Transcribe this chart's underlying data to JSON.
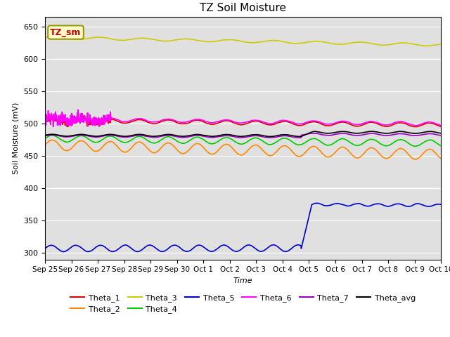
{
  "title": "TZ Soil Moisture",
  "ylabel": "Soil Moisture (mV)",
  "xlabel": "Time",
  "ylim": [
    290,
    665
  ],
  "yticks": [
    300,
    350,
    400,
    450,
    500,
    550,
    600,
    650
  ],
  "background_color": "#e0e0e0",
  "legend_label": "TZ_sm",
  "grid_color": "#ffffff",
  "tick_labels": [
    "Sep 25",
    "Sep 26",
    "Sep 27",
    "Sep 28",
    "Sep 29",
    "Sep 30",
    "Oct 1",
    "Oct 2",
    "Oct 3",
    "Oct 4",
    "Oct 5",
    "Oct 6",
    "Oct 7",
    "Oct 8",
    "Oct 9",
    "Oct 10"
  ],
  "legend_row1": [
    "Theta_1",
    "Theta_2",
    "Theta_3",
    "Theta_4",
    "Theta_5",
    "Theta_6"
  ],
  "legend_row2": [
    "Theta_7",
    "Theta_avg"
  ],
  "series_colors": {
    "Theta_1": "#dd0000",
    "Theta_2": "#ff8800",
    "Theta_3": "#cccc00",
    "Theta_4": "#00cc00",
    "Theta_5": "#0000cc",
    "Theta_6": "#ff00ff",
    "Theta_7": "#9900bb",
    "Theta_avg": "#000000"
  }
}
